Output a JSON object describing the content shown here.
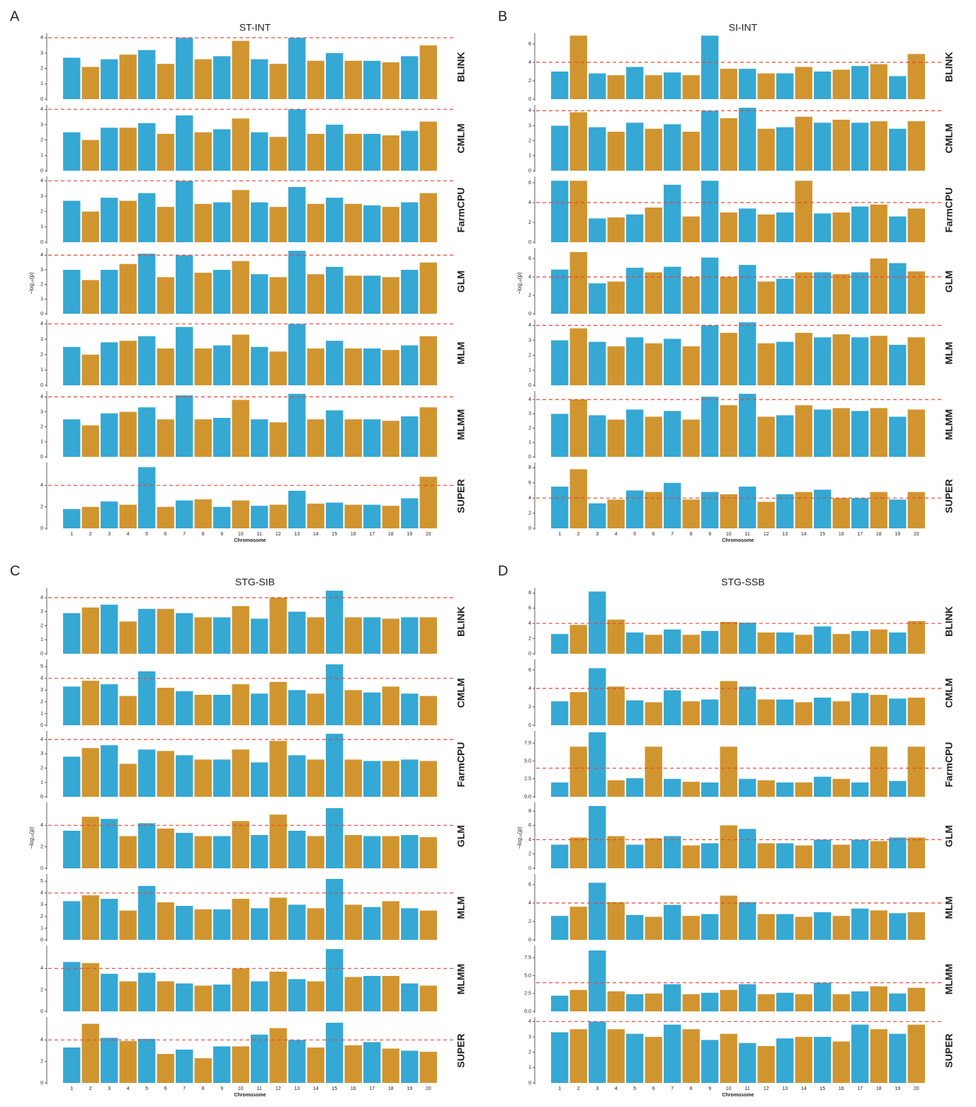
{
  "chart_data": [
    {
      "type": "manhattan",
      "panel_label": "A",
      "title": "ST-INT",
      "x_label": "Chromosome",
      "y_label": "−log₁₀(p)",
      "categories": [
        "1",
        "2",
        "3",
        "4",
        "5",
        "6",
        "7",
        "8",
        "9",
        "10",
        "11",
        "12",
        "13",
        "14",
        "15",
        "16",
        "17",
        "18",
        "19",
        "20"
      ],
      "colors": [
        "#1f9fcf",
        "#cc8a1a"
      ],
      "threshold": 4,
      "threshold_color": "#e8443a",
      "series": [
        {
          "name": "BLINK",
          "ylim": [
            0,
            4.2
          ],
          "yticks": [
            0,
            1,
            2,
            3,
            4
          ],
          "values": [
            2.7,
            2.1,
            2.6,
            2.9,
            3.2,
            2.3,
            4.0,
            2.6,
            2.8,
            3.8,
            2.6,
            2.3,
            4.0,
            2.5,
            3.0,
            2.5,
            2.5,
            2.4,
            2.8,
            3.5
          ]
        },
        {
          "name": "CMLM",
          "ylim": [
            0,
            4.2
          ],
          "yticks": [
            0,
            1,
            2,
            3,
            4
          ],
          "values": [
            2.5,
            2.0,
            2.8,
            2.8,
            3.1,
            2.4,
            3.6,
            2.5,
            2.7,
            3.4,
            2.5,
            2.2,
            4.0,
            2.4,
            3.0,
            2.4,
            2.4,
            2.3,
            2.6,
            3.2
          ]
        },
        {
          "name": "FarmCPU",
          "ylim": [
            0,
            4.2
          ],
          "yticks": [
            0,
            1,
            2,
            3,
            4
          ],
          "values": [
            2.7,
            2.0,
            2.9,
            2.7,
            3.2,
            2.3,
            4.0,
            2.5,
            2.6,
            3.4,
            2.6,
            2.3,
            3.6,
            2.5,
            2.9,
            2.5,
            2.4,
            2.3,
            2.6,
            3.2
          ]
        },
        {
          "name": "GLM",
          "ylim": [
            0,
            4.4
          ],
          "yticks": [
            0,
            1,
            2,
            3,
            4
          ],
          "values": [
            3.0,
            2.3,
            3.0,
            3.4,
            4.1,
            2.5,
            4.0,
            2.8,
            3.0,
            3.6,
            2.7,
            2.5,
            4.3,
            2.7,
            3.2,
            2.6,
            2.6,
            2.5,
            3.0,
            3.5
          ]
        },
        {
          "name": "MLM",
          "ylim": [
            0,
            4.2
          ],
          "yticks": [
            0,
            1,
            2,
            3,
            4
          ],
          "values": [
            2.5,
            2.0,
            2.8,
            2.9,
            3.2,
            2.4,
            3.8,
            2.4,
            2.6,
            3.3,
            2.5,
            2.2,
            4.0,
            2.4,
            2.9,
            2.4,
            2.4,
            2.3,
            2.6,
            3.2
          ]
        },
        {
          "name": "MLMM",
          "ylim": [
            0,
            4.3
          ],
          "yticks": [
            0,
            1,
            2,
            3,
            4
          ],
          "values": [
            2.5,
            2.1,
            2.9,
            3.0,
            3.3,
            2.5,
            4.1,
            2.5,
            2.6,
            3.8,
            2.5,
            2.3,
            4.2,
            2.5,
            3.1,
            2.5,
            2.5,
            2.4,
            2.7,
            3.3
          ]
        },
        {
          "name": "SUPER",
          "ylim": [
            0,
            6
          ],
          "yticks": [
            0,
            2,
            4
          ],
          "values": [
            1.8,
            2.0,
            2.5,
            2.2,
            5.7,
            2.0,
            2.6,
            2.7,
            2.0,
            2.6,
            2.1,
            2.2,
            3.5,
            2.3,
            2.4,
            2.2,
            2.2,
            2.1,
            2.8,
            4.8
          ]
        }
      ]
    },
    {
      "type": "manhattan",
      "panel_label": "B",
      "title": "SI-INT",
      "x_label": "Chromosome",
      "y_label": "−log₁₀(p)",
      "categories": [
        "1",
        "2",
        "3",
        "4",
        "5",
        "6",
        "7",
        "8",
        "9",
        "10",
        "11",
        "12",
        "13",
        "14",
        "15",
        "16",
        "17",
        "18",
        "19",
        "20"
      ],
      "colors": [
        "#1f9fcf",
        "#cc8a1a"
      ],
      "threshold": 4,
      "threshold_color": "#e8443a",
      "series": [
        {
          "name": "BLINK",
          "ylim": [
            0,
            7
          ],
          "yticks": [
            0,
            2,
            4,
            6
          ],
          "values": [
            3.0,
            6.9,
            2.8,
            2.6,
            3.5,
            2.6,
            2.9,
            2.6,
            6.9,
            3.3,
            3.3,
            2.8,
            2.8,
            3.5,
            3.0,
            3.2,
            3.6,
            3.8,
            2.5,
            4.9
          ]
        },
        {
          "name": "CMLM",
          "ylim": [
            0,
            4.3
          ],
          "yticks": [
            0,
            1,
            2,
            3,
            4
          ],
          "values": [
            3.0,
            3.9,
            2.9,
            2.6,
            3.2,
            2.8,
            3.1,
            2.6,
            4.0,
            3.5,
            4.2,
            2.8,
            2.9,
            3.6,
            3.2,
            3.4,
            3.2,
            3.3,
            2.8,
            3.3
          ]
        },
        {
          "name": "FarmCPU",
          "ylim": [
            0,
            6.5
          ],
          "yticks": [
            0,
            2,
            4,
            6
          ],
          "values": [
            6.2,
            6.2,
            2.4,
            2.5,
            2.8,
            3.5,
            5.8,
            2.6,
            6.2,
            3.0,
            3.4,
            2.8,
            3.0,
            6.2,
            2.9,
            3.0,
            3.6,
            3.8,
            2.6,
            3.4
          ]
        },
        {
          "name": "GLM",
          "ylim": [
            0,
            7
          ],
          "yticks": [
            0,
            2,
            4,
            6
          ],
          "values": [
            4.8,
            6.7,
            3.3,
            3.5,
            5.0,
            4.5,
            5.1,
            4.0,
            6.1,
            4.0,
            5.3,
            3.5,
            3.8,
            4.5,
            4.5,
            4.3,
            4.5,
            6.0,
            5.5,
            4.6
          ]
        },
        {
          "name": "MLM",
          "ylim": [
            0,
            4.3
          ],
          "yticks": [
            0,
            1,
            2,
            3,
            4
          ],
          "values": [
            3.0,
            3.8,
            2.9,
            2.6,
            3.2,
            2.8,
            3.1,
            2.6,
            4.0,
            3.5,
            4.2,
            2.8,
            2.9,
            3.5,
            3.2,
            3.4,
            3.2,
            3.3,
            2.7,
            3.2
          ]
        },
        {
          "name": "MLMM",
          "ylim": [
            0,
            4.5
          ],
          "yticks": [
            0,
            1,
            2,
            3,
            4
          ],
          "values": [
            3.0,
            4.0,
            2.9,
            2.6,
            3.3,
            2.8,
            3.2,
            2.6,
            4.2,
            3.6,
            4.4,
            2.8,
            2.9,
            3.6,
            3.3,
            3.4,
            3.2,
            3.4,
            2.8,
            3.3
          ]
        },
        {
          "name": "SUPER",
          "ylim": [
            0,
            8.5
          ],
          "yticks": [
            0,
            2,
            4,
            6,
            8
          ],
          "values": [
            5.5,
            7.8,
            3.3,
            3.8,
            5.0,
            4.8,
            6.0,
            3.8,
            4.8,
            4.5,
            5.5,
            3.5,
            4.5,
            4.8,
            5.1,
            4.0,
            4.0,
            4.8,
            3.8,
            4.8
          ]
        }
      ]
    },
    {
      "type": "manhattan",
      "panel_label": "C",
      "title": "STG-SIB",
      "x_label": "Chromosome",
      "y_label": "−log₁₀(p)",
      "categories": [
        "1",
        "2",
        "3",
        "4",
        "5",
        "6",
        "7",
        "8",
        "9",
        "10",
        "11",
        "12",
        "13",
        "14",
        "15",
        "16",
        "17",
        "18",
        "19",
        "20"
      ],
      "colors": [
        "#1f9fcf",
        "#cc8a1a"
      ],
      "threshold": 4,
      "threshold_color": "#e8443a",
      "series": [
        {
          "name": "BLINK",
          "ylim": [
            0,
            4.6
          ],
          "yticks": [
            0,
            1,
            2,
            3,
            4
          ],
          "values": [
            2.9,
            3.3,
            3.5,
            2.3,
            3.2,
            3.2,
            2.9,
            2.6,
            2.6,
            3.4,
            2.5,
            4.0,
            3.0,
            2.6,
            4.5,
            2.6,
            2.6,
            2.5,
            2.6,
            2.6
          ]
        },
        {
          "name": "CMLM",
          "ylim": [
            0,
            5.5
          ],
          "yticks": [
            0,
            1,
            2,
            3,
            4,
            5
          ],
          "values": [
            3.3,
            3.8,
            3.5,
            2.5,
            4.6,
            3.2,
            2.9,
            2.6,
            2.6,
            3.5,
            2.7,
            3.7,
            3.0,
            2.7,
            5.2,
            3.0,
            2.8,
            3.3,
            2.7,
            2.5
          ]
        },
        {
          "name": "FarmCPU",
          "ylim": [
            0,
            4.5
          ],
          "yticks": [
            0,
            1,
            2,
            3,
            4
          ],
          "values": [
            2.8,
            3.4,
            3.6,
            2.3,
            3.3,
            3.2,
            2.9,
            2.6,
            2.6,
            3.3,
            2.4,
            3.9,
            2.9,
            2.6,
            4.4,
            2.6,
            2.5,
            2.5,
            2.6,
            2.5
          ]
        },
        {
          "name": "GLM",
          "ylim": [
            0,
            6
          ],
          "yticks": [
            0,
            2,
            4
          ],
          "values": [
            3.5,
            4.8,
            4.6,
            3.0,
            4.2,
            3.7,
            3.3,
            3.0,
            3.0,
            4.4,
            3.1,
            5.0,
            3.5,
            3.0,
            5.6,
            3.1,
            3.0,
            3.0,
            3.1,
            2.9
          ]
        },
        {
          "name": "MLM",
          "ylim": [
            0,
            5.5
          ],
          "yticks": [
            0,
            1,
            2,
            3,
            4,
            5
          ],
          "values": [
            3.3,
            3.8,
            3.5,
            2.5,
            4.6,
            3.2,
            2.9,
            2.6,
            2.6,
            3.5,
            2.7,
            3.6,
            3.0,
            2.7,
            5.2,
            3.0,
            2.8,
            3.3,
            2.7,
            2.5
          ]
        },
        {
          "name": "MLMM",
          "ylim": [
            0,
            6
          ],
          "yticks": [
            0,
            2,
            4
          ],
          "values": [
            4.6,
            4.5,
            3.5,
            2.8,
            3.6,
            2.8,
            2.6,
            2.4,
            2.5,
            4.0,
            2.8,
            3.7,
            3.0,
            2.8,
            5.8,
            3.2,
            3.3,
            3.3,
            2.6,
            2.4
          ]
        },
        {
          "name": "SUPER",
          "ylim": [
            0,
            6
          ],
          "yticks": [
            0,
            2,
            4
          ],
          "values": [
            3.3,
            5.5,
            4.2,
            3.9,
            4.1,
            2.7,
            3.1,
            2.3,
            3.4,
            3.4,
            4.5,
            5.1,
            4.0,
            3.3,
            5.6,
            3.5,
            3.8,
            3.2,
            3.0,
            2.9
          ]
        }
      ]
    },
    {
      "type": "manhattan",
      "panel_label": "D",
      "title": "STG-SSB",
      "x_label": "Chromosome",
      "y_label": "−log₁₀(p)",
      "categories": [
        "1",
        "2",
        "3",
        "4",
        "5",
        "6",
        "7",
        "8",
        "9",
        "10",
        "11",
        "12",
        "13",
        "14",
        "15",
        "16",
        "17",
        "18",
        "19",
        "20"
      ],
      "colors": [
        "#1f9fcf",
        "#cc8a1a"
      ],
      "threshold": 4,
      "threshold_color": "#e8443a",
      "series": [
        {
          "name": "BLINK",
          "ylim": [
            0,
            8.5
          ],
          "yticks": [
            0,
            2,
            4,
            6,
            8
          ],
          "values": [
            2.6,
            3.8,
            8.2,
            4.5,
            2.8,
            2.5,
            3.2,
            2.5,
            3.0,
            4.2,
            4.1,
            2.8,
            2.8,
            2.5,
            3.6,
            2.6,
            3.0,
            3.2,
            2.8,
            4.3
          ]
        },
        {
          "name": "CMLM",
          "ylim": [
            0,
            7
          ],
          "yticks": [
            0,
            2,
            4,
            6
          ],
          "values": [
            2.6,
            3.6,
            6.2,
            4.2,
            2.7,
            2.5,
            3.8,
            2.6,
            2.8,
            4.8,
            4.2,
            2.8,
            2.8,
            2.5,
            3.0,
            2.6,
            3.5,
            3.3,
            2.9,
            3.0
          ]
        },
        {
          "name": "FarmCPU",
          "ylim": [
            0,
            9
          ],
          "yticks": [
            {
              "value": 0,
              "label": "0.0"
            },
            2.5,
            {
              "value": 5,
              "label": "5.0"
            },
            7.5
          ],
          "values": [
            2.0,
            7.0,
            9.0,
            2.3,
            2.6,
            7.0,
            2.5,
            2.1,
            2.0,
            7.0,
            2.5,
            2.3,
            2.0,
            2.0,
            2.8,
            2.5,
            2.0,
            7.0,
            2.2,
            7.0
          ]
        },
        {
          "name": "GLM",
          "ylim": [
            0,
            9
          ],
          "yticks": [
            0,
            2,
            4,
            6,
            8
          ],
          "values": [
            3.3,
            4.3,
            8.7,
            4.5,
            3.3,
            4.2,
            4.5,
            3.2,
            3.5,
            6.0,
            5.5,
            3.5,
            3.5,
            3.2,
            4.0,
            3.3,
            4.0,
            3.8,
            4.3,
            4.3
          ]
        },
        {
          "name": "MLM",
          "ylim": [
            0,
            7
          ],
          "yticks": [
            0,
            2,
            4,
            6
          ],
          "values": [
            2.6,
            3.6,
            6.2,
            4.1,
            2.7,
            2.5,
            3.8,
            2.6,
            2.8,
            4.8,
            4.1,
            2.8,
            2.8,
            2.5,
            3.0,
            2.6,
            3.4,
            3.2,
            2.9,
            3.0
          ]
        },
        {
          "name": "MLMM",
          "ylim": [
            0,
            9
          ],
          "yticks": [
            {
              "value": 0,
              "label": "0.0"
            },
            2.5,
            {
              "value": 5,
              "label": "5.0"
            },
            7.5
          ],
          "values": [
            2.2,
            3.0,
            8.5,
            2.8,
            2.4,
            2.5,
            3.8,
            2.4,
            2.6,
            3.0,
            3.8,
            2.4,
            2.6,
            2.4,
            4.0,
            2.4,
            2.8,
            3.5,
            2.5,
            3.3
          ]
        },
        {
          "name": "SUPER",
          "ylim": [
            0,
            4.2
          ],
          "yticks": [
            0,
            1,
            2,
            3,
            4
          ],
          "values": [
            3.3,
            3.5,
            4.0,
            3.5,
            3.2,
            3.0,
            3.8,
            3.5,
            2.8,
            3.2,
            2.6,
            2.4,
            2.9,
            3.0,
            3.0,
            2.7,
            3.8,
            3.5,
            3.2,
            3.8
          ]
        }
      ]
    }
  ]
}
